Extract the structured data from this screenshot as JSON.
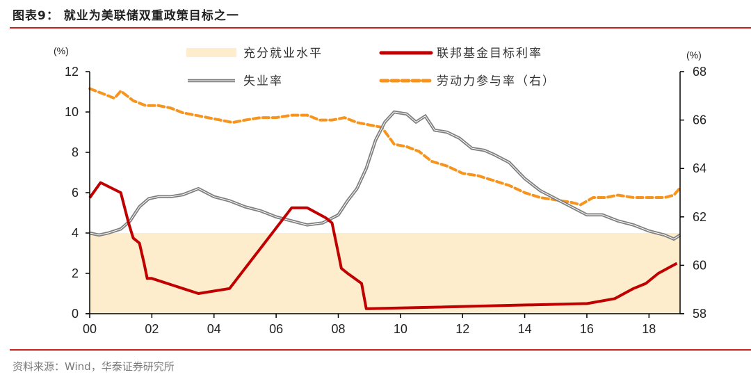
{
  "header": {
    "title": "图表9：  就业为美联储双重政策目标之一"
  },
  "footer": {
    "source": "资料来源：Wind，华泰证券研究所"
  },
  "colors": {
    "full_employment_fill": "#fdedcc",
    "fed_funds": "#c00000",
    "unemployment": "#7f7f7f",
    "participation": "#f7941d",
    "rule": "#c8221c"
  },
  "axes": {
    "left_unit": "(%)",
    "right_unit": "(%)",
    "left_ticks": [
      "0",
      "2",
      "4",
      "6",
      "8",
      "10",
      "12"
    ],
    "right_ticks": [
      "58",
      "60",
      "62",
      "64",
      "66",
      "68"
    ],
    "x_ticks": [
      "00",
      "02",
      "04",
      "06",
      "08",
      "10",
      "12",
      "14",
      "16",
      "18"
    ]
  },
  "legend": [
    {
      "label": "充分就业水平",
      "style": "fill"
    },
    {
      "label": "联邦基金目标利率",
      "style": "solid-red"
    },
    {
      "label": "失业率",
      "style": "double-gray"
    },
    {
      "label": "劳动力参与率（右）",
      "style": "dashed-orange"
    }
  ],
  "chart_data": {
    "type": "line",
    "title": "就业为美联储双重政策目标之一",
    "xlabel": "",
    "ylabel": "%",
    "y2label": "%",
    "xlim": [
      2000,
      2019
    ],
    "ylim": [
      0,
      12
    ],
    "y2lim": [
      58,
      68
    ],
    "grid": false,
    "legend_position": "top",
    "series": [
      {
        "name": "充分就业水平",
        "type": "area",
        "axis": "left",
        "x": [
          2000,
          2019
        ],
        "values": [
          4.0,
          4.0
        ]
      },
      {
        "name": "联邦基金目标利率",
        "axis": "left",
        "x": [
          2000.0,
          2000.35,
          2001.0,
          2001.25,
          2001.4,
          2001.6,
          2001.75,
          2001.85,
          2002.0,
          2003.0,
          2003.5,
          2004.5,
          2005.0,
          2005.5,
          2006.0,
          2006.5,
          2007.0,
          2007.6,
          2007.8,
          2008.0,
          2008.1,
          2008.3,
          2008.75,
          2008.9,
          2009.0,
          2015.9,
          2016.0,
          2016.9,
          2017.2,
          2017.5,
          2017.9,
          2018.3,
          2018.9
        ],
        "values": [
          5.75,
          6.5,
          6.0,
          4.5,
          3.75,
          3.5,
          2.5,
          1.75,
          1.75,
          1.25,
          1.0,
          1.25,
          2.25,
          3.25,
          4.25,
          5.25,
          5.25,
          4.75,
          4.5,
          3.0,
          2.25,
          2.0,
          1.5,
          0.25,
          0.25,
          0.5,
          0.5,
          0.75,
          1.0,
          1.25,
          1.5,
          2.0,
          2.5
        ]
      },
      {
        "name": "失业率",
        "axis": "left",
        "x": [
          2000.0,
          2000.3,
          2000.6,
          2001.0,
          2001.3,
          2001.6,
          2001.9,
          2002.2,
          2002.6,
          2003.0,
          2003.5,
          2004.0,
          2004.5,
          2005.0,
          2005.5,
          2006.0,
          2006.5,
          2007.0,
          2007.5,
          2008.0,
          2008.3,
          2008.6,
          2008.9,
          2009.2,
          2009.5,
          2009.8,
          2010.2,
          2010.5,
          2010.8,
          2011.1,
          2011.5,
          2011.9,
          2012.3,
          2012.7,
          2013.0,
          2013.5,
          2014.0,
          2014.5,
          2015.0,
          2015.5,
          2016.0,
          2016.5,
          2017.0,
          2017.5,
          2018.0,
          2018.5,
          2018.8,
          2019.0
        ],
        "values": [
          4.0,
          3.9,
          4.0,
          4.2,
          4.6,
          5.3,
          5.7,
          5.8,
          5.8,
          5.9,
          6.2,
          5.8,
          5.6,
          5.3,
          5.1,
          4.8,
          4.6,
          4.4,
          4.5,
          4.9,
          5.6,
          6.2,
          7.2,
          8.6,
          9.5,
          10.0,
          9.9,
          9.5,
          9.8,
          9.1,
          9.0,
          8.7,
          8.2,
          8.1,
          7.9,
          7.5,
          6.7,
          6.1,
          5.7,
          5.3,
          4.9,
          4.9,
          4.6,
          4.4,
          4.1,
          3.9,
          3.7,
          3.9
        ]
      },
      {
        "name": "劳动力参与率（右）",
        "axis": "right",
        "x": [
          2000.0,
          2000.4,
          2000.8,
          2001.0,
          2001.4,
          2001.8,
          2002.2,
          2002.6,
          2003.0,
          2003.4,
          2003.8,
          2004.2,
          2004.6,
          2005.0,
          2005.5,
          2006.0,
          2006.5,
          2007.0,
          2007.4,
          2007.8,
          2008.2,
          2008.6,
          2009.0,
          2009.4,
          2009.8,
          2010.2,
          2010.6,
          2011.0,
          2011.5,
          2012.0,
          2012.5,
          2013.0,
          2013.5,
          2014.0,
          2014.5,
          2015.0,
          2015.5,
          2015.8,
          2016.2,
          2016.6,
          2017.0,
          2017.5,
          2018.0,
          2018.5,
          2018.8,
          2019.0
        ],
        "values": [
          67.3,
          67.1,
          66.9,
          67.2,
          66.8,
          66.6,
          66.6,
          66.5,
          66.3,
          66.2,
          66.1,
          66.0,
          65.9,
          66.0,
          66.1,
          66.1,
          66.2,
          66.2,
          66.0,
          66.0,
          66.1,
          65.9,
          65.8,
          65.7,
          65.0,
          64.9,
          64.7,
          64.3,
          64.1,
          63.8,
          63.7,
          63.5,
          63.3,
          63.0,
          62.8,
          62.7,
          62.6,
          62.5,
          62.8,
          62.8,
          62.9,
          62.8,
          62.8,
          62.8,
          62.9,
          63.2
        ]
      }
    ]
  }
}
